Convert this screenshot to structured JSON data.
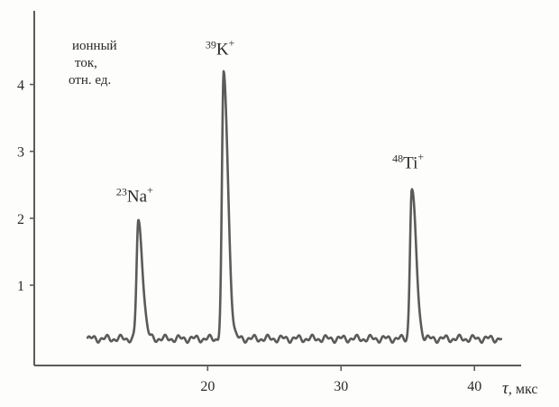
{
  "chart_data": {
    "type": "line",
    "xlabel": {
      "symbol": "τ",
      "unit": ", мкс"
    },
    "ylabel_lines": [
      "ионный",
      "ток,",
      "отн. ед."
    ],
    "x_ticks": [
      20,
      30,
      40
    ],
    "y_ticks": [
      1,
      2,
      3,
      4
    ],
    "xlim": [
      7,
      43.5
    ],
    "ylim": [
      -0.2,
      5.1
    ],
    "baseline": 0.2,
    "peaks": [
      {
        "label": "²³Na⁺",
        "mass": "23",
        "symbol": "Na",
        "charge": "+",
        "x": 14.8,
        "y": 1.95
      },
      {
        "label": "³⁹K⁺",
        "mass": "39",
        "symbol": "K",
        "charge": "+",
        "x": 21.2,
        "y": 4.15
      },
      {
        "label": "⁴⁸Ti⁺",
        "mass": "48",
        "symbol": "Ti",
        "charge": "+",
        "x": 35.3,
        "y": 2.45
      }
    ],
    "x_range": [
      11,
      42
    ],
    "grid": false
  }
}
